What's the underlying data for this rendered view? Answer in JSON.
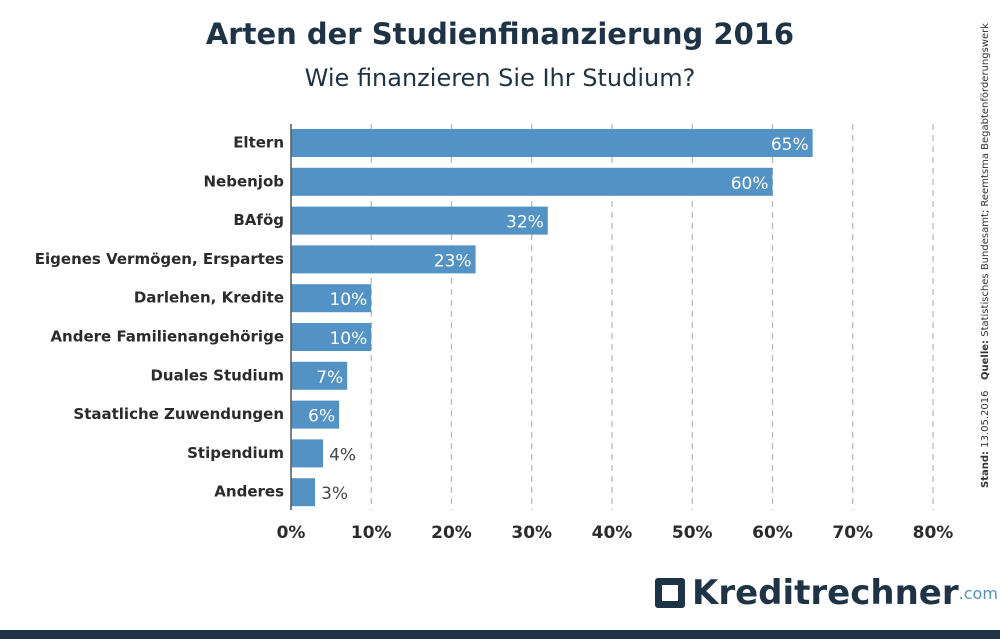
{
  "chart_data": {
    "type": "bar",
    "orientation": "horizontal",
    "title": "Arten der Studienfinanzierung 2016",
    "subtitle": "Wie finanzieren Sie Ihr Studium?",
    "categories": [
      "Eltern",
      "Nebenjob",
      "BAfög",
      "Eigenes Vermögen, Erspartes",
      "Darlehen, Kredite",
      "Andere Familienangehörige",
      "Duales Studium",
      "Staatliche Zuwendungen",
      "Stipendium",
      "Anderes"
    ],
    "values": [
      65,
      60,
      32,
      23,
      10,
      10,
      7,
      6,
      4,
      3
    ],
    "value_labels": [
      "65%",
      "60%",
      "32%",
      "23%",
      "10%",
      "10%",
      "7%",
      "6%",
      "4%",
      "3%"
    ],
    "color": "#5292c4",
    "xlim": [
      0,
      80
    ],
    "xticks": [
      {
        "value": 0,
        "label": "0%"
      },
      {
        "value": 10,
        "label": "10%"
      },
      {
        "value": 20,
        "label": "20%"
      },
      {
        "value": 30,
        "label": "30%"
      },
      {
        "value": 40,
        "label": "40%"
      },
      {
        "value": 50,
        "label": "50%"
      },
      {
        "value": 60,
        "label": "60%"
      },
      {
        "value": 70,
        "label": "70%"
      },
      {
        "value": 80,
        "label": "80%"
      }
    ],
    "grid": true,
    "source_label": "Quelle:",
    "source": "Statistisches Bundesamt; Reemtsma Begabtenförderungswerk",
    "date_label": "Stand:",
    "date": "13.05.2016",
    "brand": "Kreditrechner",
    "brand_suffix": ".com"
  }
}
